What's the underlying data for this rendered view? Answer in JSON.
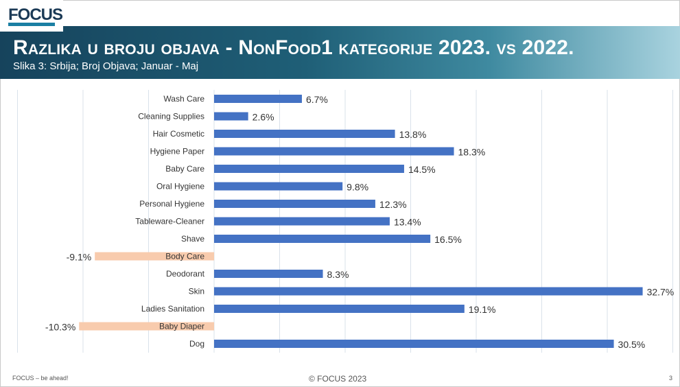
{
  "logo": {
    "text": "FOCUS"
  },
  "header": {
    "title": "Razlika u broju objava - NonFood1 kategorije 2023. vs 2022.",
    "subtitle": "Slika 3: Srbija; Broj Objava; Januar - Maj"
  },
  "colors": {
    "positive": "#4472c4",
    "negative": "#f8cbad",
    "grid": "#d9e1ea",
    "banner_dark": "#16435c",
    "banner_light": "#a9d3df"
  },
  "chart_data": {
    "type": "bar",
    "orientation": "horizontal",
    "categories": [
      "Wash Care",
      "Cleaning Supplies",
      "Hair Cosmetic",
      "Hygiene Paper",
      "Baby Care",
      "Oral Hygiene",
      "Personal Hygiene",
      "Tableware-Cleaner",
      "Shave",
      "Body Care",
      "Deodorant",
      "Skin",
      "Ladies Sanitation",
      "Baby Diaper",
      "Dog"
    ],
    "values": [
      6.7,
      2.6,
      13.8,
      18.3,
      14.5,
      9.8,
      12.3,
      13.4,
      16.5,
      -9.1,
      8.3,
      32.7,
      19.1,
      -10.3,
      30.5
    ],
    "labels": [
      "6.7%",
      "2.6%",
      "13.8%",
      "18.3%",
      "14.5%",
      "9.8%",
      "12.3%",
      "13.4%",
      "16.5%",
      "-9.1%",
      "8.3%",
      "32.7%",
      "19.1%",
      "-10.3%",
      "30.5%"
    ],
    "xlim": [
      -15,
      35
    ],
    "unit": "%",
    "grid": true,
    "legend": "none"
  },
  "footer": {
    "left": "FOCUS – be ahead!",
    "center": "© FOCUS 2023",
    "page": "3"
  }
}
